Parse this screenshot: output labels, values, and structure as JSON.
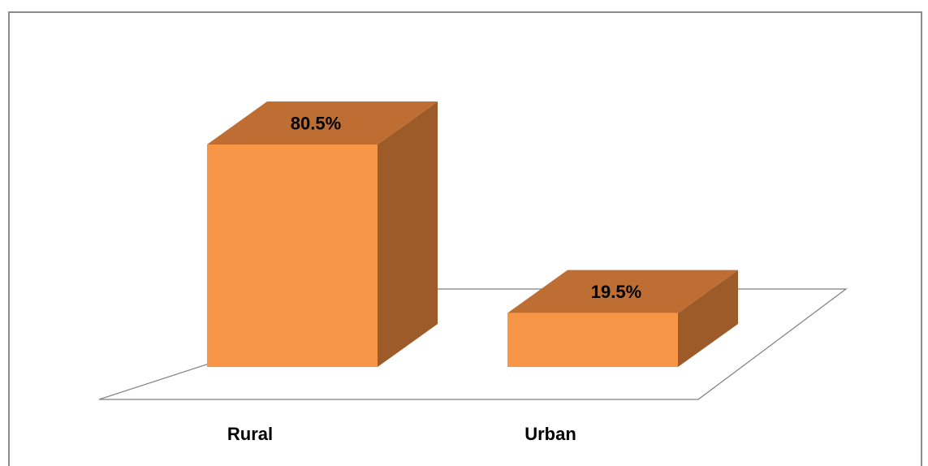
{
  "chart_data": {
    "type": "bar",
    "style": "3d",
    "categories": [
      "Rural",
      "Urban"
    ],
    "values": [
      80.5,
      19.5
    ],
    "value_labels": [
      "80.5%",
      "19.5%"
    ],
    "ylim": [
      0,
      80.5
    ],
    "grid": false,
    "legend": "none",
    "colors": {
      "bar_front": "#F79646",
      "bar_top": "#BF6E33",
      "bar_side": "#9E5B2A",
      "floor_stroke": "#7f7f7f"
    }
  }
}
